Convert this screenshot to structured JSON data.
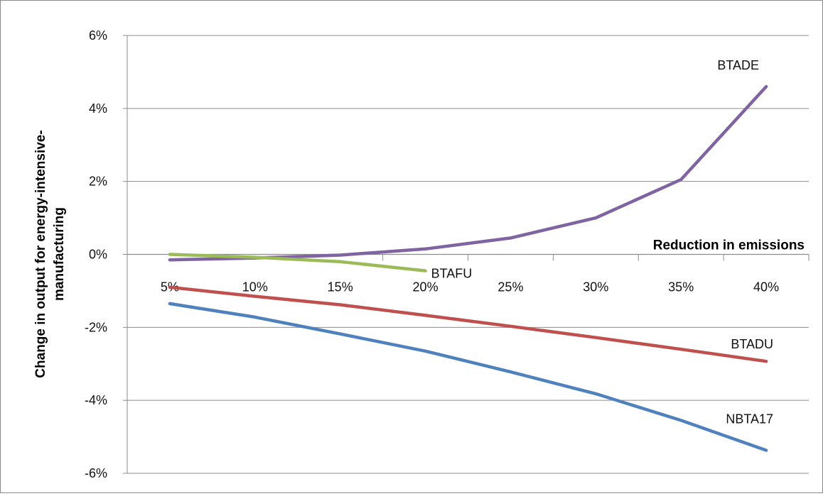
{
  "chart_data": {
    "type": "line",
    "title": "",
    "xlabel": "Reduction in emissions",
    "ylabel": "Change in output for energy-intensive-manufacturing",
    "categories": [
      "5%",
      "10%",
      "15%",
      "20%",
      "25%",
      "30%",
      "35%",
      "40%"
    ],
    "x": [
      5,
      10,
      15,
      20,
      25,
      30,
      35,
      40
    ],
    "ylim": [
      -6,
      6
    ],
    "y_ticks": [
      "-6%",
      "-4%",
      "-2%",
      "0%",
      "2%",
      "4%",
      "6%"
    ],
    "grid": true,
    "legend": "none (series labels placed next to lines)",
    "series": [
      {
        "name": "BTADE",
        "color": "#8064a2",
        "values": [
          -0.15,
          -0.1,
          -0.02,
          0.15,
          0.45,
          1.0,
          2.05,
          4.6
        ]
      },
      {
        "name": "BTAFU",
        "color": "#9bbb59",
        "values": [
          0.0,
          -0.08,
          -0.2,
          -0.45,
          null,
          null,
          null,
          null
        ]
      },
      {
        "name": "BTADU",
        "color": "#c0504d",
        "values": [
          -0.9,
          -1.15,
          -1.38,
          -1.67,
          -1.97,
          -2.28,
          -2.6,
          -2.93
        ]
      },
      {
        "name": "NBTA17",
        "color": "#4f81bd",
        "values": [
          -1.35,
          -1.72,
          -2.18,
          -2.65,
          -3.22,
          -3.82,
          -4.55,
          -5.37
        ]
      }
    ]
  }
}
